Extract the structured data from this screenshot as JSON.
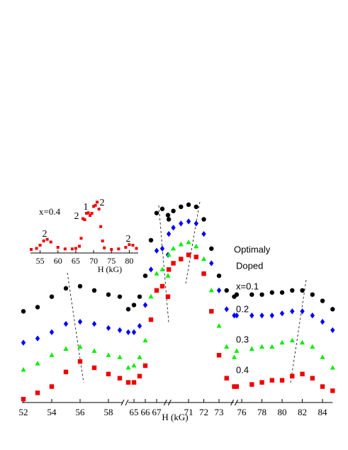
{
  "chart_data": [
    {
      "type": "scatter",
      "xlabel": "H (kG)",
      "x": [
        52,
        53,
        54,
        55,
        56,
        57,
        58,
        58.8,
        64.5,
        65,
        65.5,
        66,
        66.5,
        67,
        67.5,
        68,
        69.7,
        70,
        70.5,
        71,
        71.5,
        72,
        72.5,
        73,
        73.5,
        74,
        75.5,
        77,
        78,
        79,
        80,
        81,
        82,
        83,
        84,
        85
      ],
      "ylim": [
        0,
        10
      ],
      "segments": [
        {
          "xlim": [
            51.9,
            59
          ],
          "xticks": [
            52,
            54,
            56,
            58
          ]
        },
        {
          "xlim": [
            64.5,
            68.1
          ],
          "xticks": [
            65,
            66,
            67
          ]
        },
        {
          "xlim": [
            69.6,
            74
          ],
          "xticks": [
            71,
            72,
            73
          ]
        },
        {
          "xlim": [
            75.4,
            85
          ],
          "xticks": [
            76,
            78,
            80,
            82,
            84
          ]
        }
      ],
      "annotations": [
        "Optimaly",
        "Doped"
      ],
      "series": [
        {
          "name": "x=0.1",
          "color": "#000000",
          "marker": "circle",
          "values": [
            4.6,
            4.8,
            5.3,
            5.7,
            5.8,
            5.6,
            5.4,
            5.3,
            4.7,
            4.9,
            5.3,
            6.3,
            8.0,
            9.3,
            9.5,
            9.2,
            9.0,
            9.4,
            9.6,
            9.7,
            9.6,
            9.0,
            7.6,
            6.3,
            5.6,
            5.3,
            5.4,
            5.4,
            5.4,
            5.5,
            5.5,
            5.6,
            5.6,
            5.4,
            5.1,
            4.7
          ]
        },
        {
          "name": "0.2",
          "color": "#0000ff",
          "marker": "diamond",
          "values": [
            3.1,
            3.3,
            3.6,
            4.0,
            4.1,
            4.0,
            3.8,
            3.7,
            3.6,
            3.6,
            3.9,
            4.9,
            6.6,
            7.5,
            7.6,
            7.3,
            8.3,
            8.6,
            8.8,
            8.9,
            8.8,
            8.3,
            6.9,
            5.6,
            4.7,
            4.4,
            4.4,
            4.4,
            4.4,
            4.4,
            4.5,
            4.6,
            4.6,
            4.4,
            4.1,
            3.7
          ]
        },
        {
          "name": "0.3",
          "color": "#00ee00",
          "marker": "triangle",
          "values": [
            1.8,
            2.1,
            2.5,
            2.8,
            2.9,
            2.7,
            2.5,
            2.4,
            1.9,
            2.0,
            2.4,
            3.2,
            5.3,
            6.4,
            6.6,
            6.3,
            7.3,
            7.6,
            7.8,
            7.9,
            7.7,
            7.1,
            5.6,
            3.9,
            2.9,
            2.4,
            2.7,
            2.8,
            2.9,
            2.9,
            3.1,
            3.2,
            3.1,
            2.9,
            2.4,
            1.9
          ]
        },
        {
          "name": "0.4",
          "color": "#ee0000",
          "marker": "square",
          "values": [
            0.4,
            0.7,
            1.0,
            1.7,
            2.2,
            1.9,
            1.6,
            1.4,
            1.2,
            1.2,
            1.5,
            2.0,
            4.2,
            5.6,
            5.8,
            5.3,
            6.6,
            6.9,
            7.1,
            7.3,
            7.2,
            6.4,
            4.6,
            2.5,
            1.4,
            1.0,
            1.0,
            1.1,
            1.2,
            1.3,
            1.3,
            1.5,
            1.6,
            1.4,
            1.0,
            0.8
          ]
        }
      ]
    },
    {
      "type": "inset",
      "xlabel": "H (kG)",
      "xlim": [
        52.3,
        82.5
      ],
      "xticks": [
        55,
        60,
        65,
        70,
        75,
        80
      ],
      "ylim": [
        0,
        10
      ],
      "annotations": [
        "2",
        "2",
        "1",
        "2",
        "2"
      ],
      "x": [
        52.5,
        54,
        55,
        56,
        57,
        58,
        60,
        62,
        64,
        65,
        66,
        66.5,
        67,
        67.5,
        68,
        68.5,
        69,
        69.5,
        70,
        70.5,
        71,
        71.5,
        72,
        72.5,
        73,
        75,
        77,
        79,
        80,
        81,
        82
      ],
      "series": [
        {
          "name": "x=0.4",
          "color": "#ee0000",
          "marker": "square",
          "values": [
            0.4,
            0.6,
            1.2,
            2.0,
            2.3,
            1.8,
            0.8,
            0.5,
            0.5,
            0.6,
            1.0,
            2.5,
            6.2,
            6.0,
            7.2,
            7.3,
            6.8,
            7.2,
            8.5,
            8.7,
            9.3,
            8.0,
            4.7,
            2.0,
            0.7,
            0.4,
            0.5,
            0.8,
            1.3,
            1.2,
            0.6
          ]
        }
      ]
    }
  ]
}
